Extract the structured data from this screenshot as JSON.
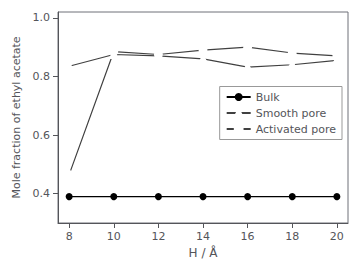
{
  "chart_data": {
    "type": "line",
    "x": [
      8,
      10,
      12,
      14,
      16,
      18,
      20
    ],
    "series": [
      {
        "name": "Bulk",
        "color": "#000000",
        "marker": "circle",
        "values": [
          0.39,
          0.39,
          0.39,
          0.39,
          0.39,
          0.39,
          0.39
        ]
      },
      {
        "name": "Smooth pore",
        "color": "#404040",
        "marker": "open-triangle",
        "values": [
          0.835,
          0.875,
          0.87,
          0.86,
          0.832,
          0.84,
          0.855
        ]
      },
      {
        "name": "Activated pore",
        "color": "#404040",
        "marker": "open-circle",
        "values": [
          0.465,
          0.885,
          0.875,
          0.89,
          0.9,
          0.88,
          0.87
        ]
      }
    ],
    "x_label": "H / Å",
    "y_label": "Mole fraction of ethyl acetate",
    "xlim": [
      7.5,
      20.5
    ],
    "xticks": [
      8,
      10,
      12,
      14,
      16,
      18,
      20
    ],
    "ylim": [
      0.3,
      1.02
    ],
    "yticks": [
      0.4,
      0.6,
      0.8,
      {
        "value": 1.0,
        "label": "1.0"
      }
    ],
    "grid": false,
    "legend": "right"
  }
}
